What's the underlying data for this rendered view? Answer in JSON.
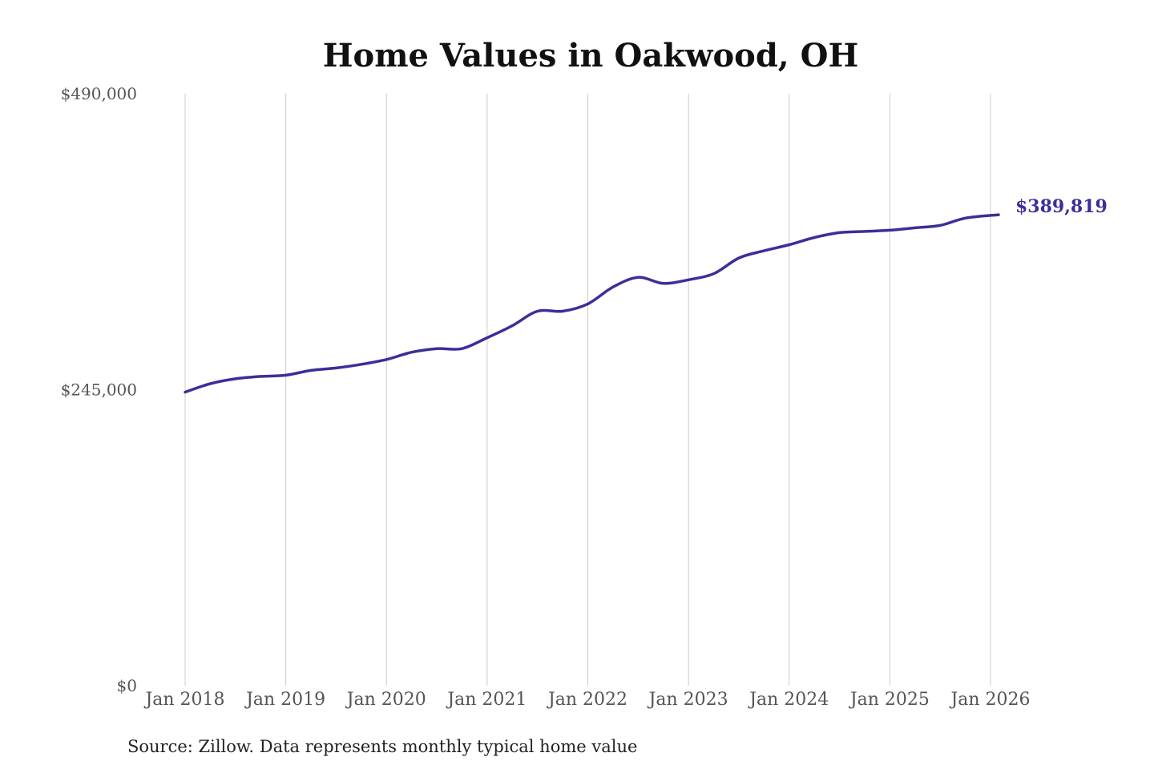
{
  "title": "Home Values in Oakwood, OH",
  "source": "Source: Zillow. Data represents monthly typical home value",
  "colors": {
    "line": "#3a2f9a",
    "grid": "#cccccc",
    "text": "#555555"
  },
  "chart_data": {
    "type": "line",
    "title": "Home Values in Oakwood, OH",
    "xlabel": "",
    "ylabel": "",
    "ylim": [
      0,
      490000
    ],
    "y_ticks": [
      {
        "value": 490000,
        "label": "$490,000"
      },
      {
        "value": 245000,
        "label": "$245,000"
      },
      {
        "value": 0,
        "label": "$0"
      }
    ],
    "x_ticks": [
      {
        "value": 2018,
        "label": "Jan 2018"
      },
      {
        "value": 2019,
        "label": "Jan 2019"
      },
      {
        "value": 2020,
        "label": "Jan 2020"
      },
      {
        "value": 2021,
        "label": "Jan 2021"
      },
      {
        "value": 2022,
        "label": "Jan 2022"
      },
      {
        "value": 2023,
        "label": "Jan 2023"
      },
      {
        "value": 2024,
        "label": "Jan 2024"
      },
      {
        "value": 2025,
        "label": "Jan 2025"
      },
      {
        "value": 2026,
        "label": "Jan 2026"
      }
    ],
    "xlim": [
      2018,
      2026
    ],
    "grid": "vertical",
    "end_label": "$389,819",
    "series": [
      {
        "values": [
          {
            "x": 2018.0,
            "y": 243000
          },
          {
            "x": 2018.25,
            "y": 250000
          },
          {
            "x": 2018.5,
            "y": 254000
          },
          {
            "x": 2018.75,
            "y": 256000
          },
          {
            "x": 2019.0,
            "y": 257000
          },
          {
            "x": 2019.25,
            "y": 261000
          },
          {
            "x": 2019.5,
            "y": 263000
          },
          {
            "x": 2019.75,
            "y": 266000
          },
          {
            "x": 2020.0,
            "y": 270000
          },
          {
            "x": 2020.25,
            "y": 276000
          },
          {
            "x": 2020.5,
            "y": 279000
          },
          {
            "x": 2020.75,
            "y": 279000
          },
          {
            "x": 2021.0,
            "y": 288000
          },
          {
            "x": 2021.25,
            "y": 298000
          },
          {
            "x": 2021.5,
            "y": 310000
          },
          {
            "x": 2021.75,
            "y": 310000
          },
          {
            "x": 2022.0,
            "y": 316000
          },
          {
            "x": 2022.25,
            "y": 330000
          },
          {
            "x": 2022.5,
            "y": 338000
          },
          {
            "x": 2022.75,
            "y": 333000
          },
          {
            "x": 2023.0,
            "y": 336000
          },
          {
            "x": 2023.25,
            "y": 341000
          },
          {
            "x": 2023.5,
            "y": 354000
          },
          {
            "x": 2023.75,
            "y": 360000
          },
          {
            "x": 2024.0,
            "y": 365000
          },
          {
            "x": 2024.25,
            "y": 371000
          },
          {
            "x": 2024.5,
            "y": 375000
          },
          {
            "x": 2024.75,
            "y": 376000
          },
          {
            "x": 2025.0,
            "y": 377000
          },
          {
            "x": 2025.25,
            "y": 379000
          },
          {
            "x": 2025.5,
            "y": 381000
          },
          {
            "x": 2025.75,
            "y": 387000
          },
          {
            "x": 2026.08,
            "y": 389819
          }
        ]
      }
    ]
  }
}
